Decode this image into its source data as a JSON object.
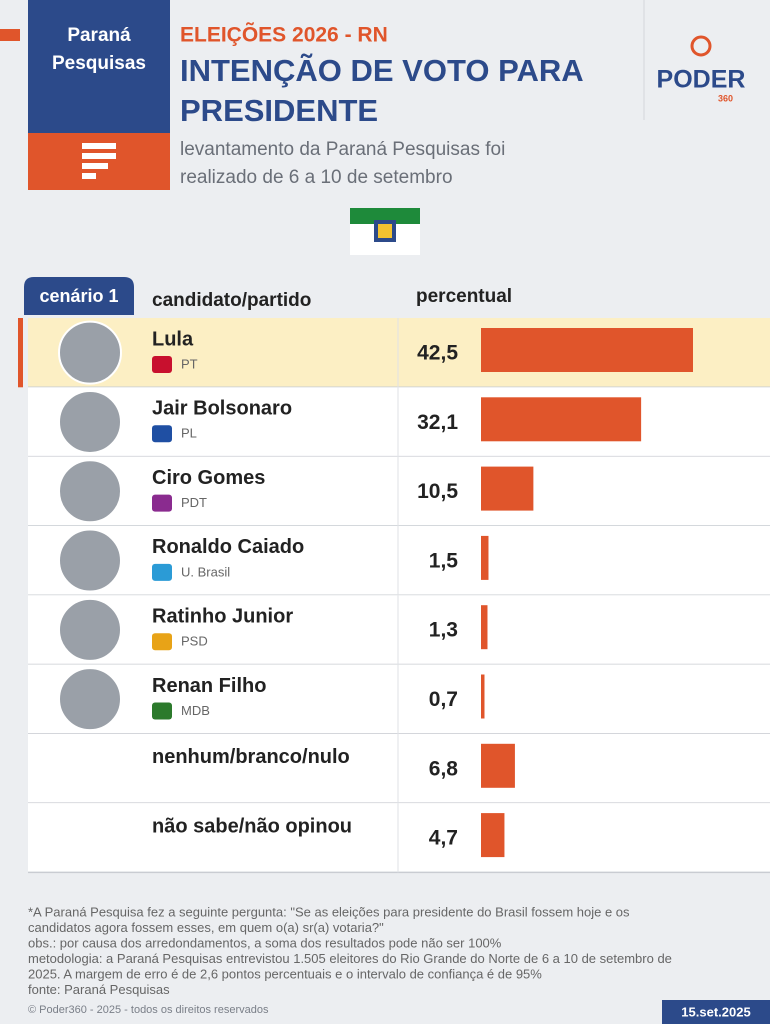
{
  "header": {
    "brand": "Paraná Pesquisas",
    "kicker": "ELEIÇÕES 2026 - RN",
    "logo": "PODER",
    "logo_sub": "360"
  },
  "chart_data": {
    "type": "bar",
    "orientation": "horizontal",
    "title": "INTENÇÃO DE VOTO PARA PRESIDENTE",
    "subtitle": "levantamento da Paraná Pesquisas foi realizado de 6 a 10 de setembro",
    "scenario": "cenário 1",
    "category_header": "candidato/partido",
    "value_header": "percentual",
    "categories": [
      "Lula",
      "Jair Bolsonaro",
      "Ciro Gomes",
      "Ronaldo Caiado",
      "Ratinho Junior",
      "Renan Filho",
      "nenhum/branco/nulo",
      "não sabe/não opinou"
    ],
    "parties": [
      "PT",
      "PL",
      "PDT",
      "U. Brasil",
      "PSD",
      "MDB",
      null,
      null
    ],
    "values": [
      42.5,
      32.1,
      10.5,
      1.5,
      1.3,
      0.7,
      6.8,
      4.7
    ],
    "value_labels": [
      "42,5",
      "32,1",
      "10,5",
      "1,5",
      "1,3",
      "0,7",
      "6,8",
      "4,7"
    ],
    "color": "#e0552b",
    "highlight": 0
  },
  "footer": {
    "notes": [
      "*A Paraná Pesquisa fez a seguinte pergunta: \"Se as eleições para presidente do Brasil fossem hoje e os",
      "candidatos agora fossem esses, em quem o(a) sr(a) votaria?\"",
      "obs.: por causa dos arredondamentos, a soma dos resultados pode não ser 100%",
      "metodologia: a Paraná Pesquisas entrevistou 1.505 eleitores do Rio Grande do Norte de 6 a 10 de setembro de",
      "2025. A margem de erro é de 2,6 pontos percentuais e o intervalo de confiança é de 95%",
      "fonte: Paraná Pesquisas"
    ],
    "copyright": "© Poder360 - 2025 - todos os direitos reservados",
    "date": "15.set.2025"
  }
}
